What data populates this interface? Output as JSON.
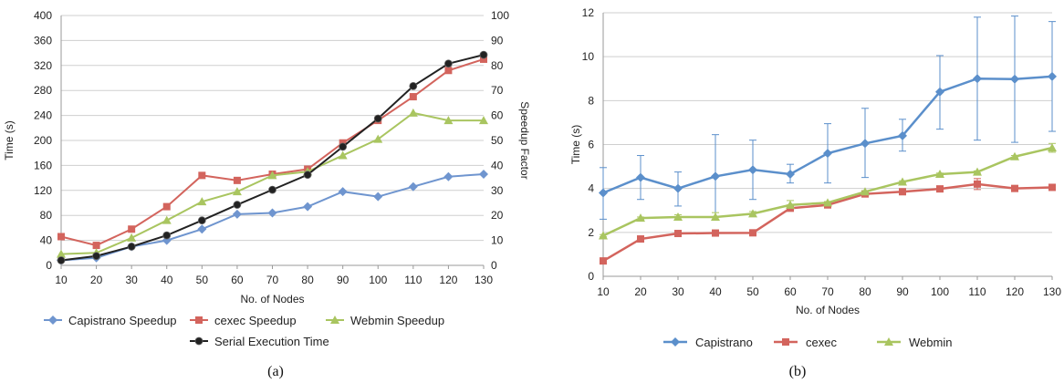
{
  "chart_data": [
    {
      "type": "line",
      "caption": "(a)",
      "xlabel": "No. of Nodes",
      "ylabel": "Time (s)",
      "y2label": "Speedup Factor",
      "x": [
        10,
        20,
        30,
        40,
        50,
        60,
        70,
        80,
        90,
        100,
        110,
        120,
        130
      ],
      "xlim": [
        10,
        130
      ],
      "ylim": [
        0,
        400
      ],
      "y2lim": [
        0,
        100
      ],
      "yticks": [
        0,
        40,
        80,
        120,
        160,
        200,
        240,
        280,
        320,
        360,
        400
      ],
      "y2ticks": [
        0,
        10,
        20,
        30,
        40,
        50,
        60,
        70,
        80,
        90,
        100
      ],
      "grid": true,
      "legend": "bottom",
      "series": [
        {
          "name": "Capistrano Speedup",
          "axis": "right",
          "marker": "diamond",
          "color": "#6f95cf",
          "values": [
            2,
            3,
            7.5,
            10,
            14.5,
            20.5,
            21,
            23.5,
            29.5,
            27.5,
            31.5,
            35.5,
            36.5
          ]
        },
        {
          "name": "cexec Speedup",
          "axis": "right",
          "marker": "square",
          "color": "#d3645d",
          "values": [
            11.5,
            8,
            14.5,
            23.5,
            36,
            34,
            36.5,
            38.5,
            49,
            58,
            67.5,
            78,
            82.5
          ]
        },
        {
          "name": "Webmin Speedup",
          "axis": "right",
          "marker": "triangle",
          "color": "#a9c560",
          "values": [
            4.5,
            5,
            11,
            18,
            25.5,
            29.5,
            36,
            37.5,
            44,
            50.5,
            61,
            58,
            58
          ]
        },
        {
          "name": "Serial Execution Time",
          "axis": "left",
          "marker": "circle",
          "color": "#222222",
          "values": [
            8,
            15,
            30,
            48,
            72,
            97,
            121,
            145,
            190,
            235,
            287,
            323,
            337
          ]
        }
      ]
    },
    {
      "type": "line",
      "caption": "(b)",
      "xlabel": "No. of Nodes",
      "ylabel": "Time (s)",
      "x": [
        10,
        20,
        30,
        40,
        50,
        60,
        70,
        80,
        90,
        100,
        110,
        120,
        130
      ],
      "xlim": [
        10,
        130
      ],
      "ylim": [
        0,
        12
      ],
      "yticks": [
        0,
        2,
        4,
        6,
        8,
        10,
        12
      ],
      "grid": true,
      "legend": "bottom",
      "series": [
        {
          "name": "Capistrano",
          "marker": "diamond",
          "color": "#5b8fcb",
          "values": [
            3.8,
            4.5,
            4.0,
            4.55,
            4.85,
            4.65,
            5.6,
            6.05,
            6.4,
            8.4,
            9.0,
            8.98,
            9.1
          ],
          "error_low": [
            2.6,
            3.5,
            3.2,
            2.7,
            3.5,
            4.25,
            4.25,
            4.5,
            5.7,
            6.7,
            6.2,
            6.1,
            6.6
          ],
          "error_high": [
            4.95,
            5.5,
            4.75,
            6.45,
            6.2,
            5.1,
            6.95,
            7.65,
            7.15,
            10.05,
            11.8,
            11.85,
            11.6
          ]
        },
        {
          "name": "cexec",
          "marker": "square",
          "color": "#d3645d",
          "values": [
            0.7,
            1.7,
            1.95,
            1.97,
            1.98,
            3.1,
            3.25,
            3.75,
            3.85,
            3.98,
            4.2,
            4.0,
            4.05
          ],
          "error_low": [
            0.7,
            1.7,
            1.95,
            1.97,
            1.98,
            3.0,
            3.2,
            3.7,
            3.8,
            3.95,
            3.95,
            3.95,
            4.0
          ],
          "error_high": [
            0.7,
            1.7,
            1.95,
            1.97,
            1.98,
            3.2,
            3.3,
            3.8,
            3.9,
            4.05,
            4.45,
            4.05,
            4.1
          ]
        },
        {
          "name": "Webmin",
          "marker": "triangle",
          "color": "#a9c560",
          "values": [
            1.85,
            2.65,
            2.7,
            2.7,
            2.85,
            3.25,
            3.35,
            3.85,
            4.3,
            4.65,
            4.75,
            5.45,
            5.85
          ],
          "error_low": [
            1.8,
            2.6,
            2.6,
            2.55,
            2.75,
            3.1,
            3.3,
            3.8,
            4.25,
            4.6,
            4.7,
            5.4,
            5.65
          ],
          "error_high": [
            1.9,
            2.7,
            2.8,
            2.9,
            2.95,
            3.45,
            3.4,
            3.9,
            4.35,
            4.7,
            4.8,
            5.5,
            6.05
          ]
        }
      ]
    }
  ]
}
